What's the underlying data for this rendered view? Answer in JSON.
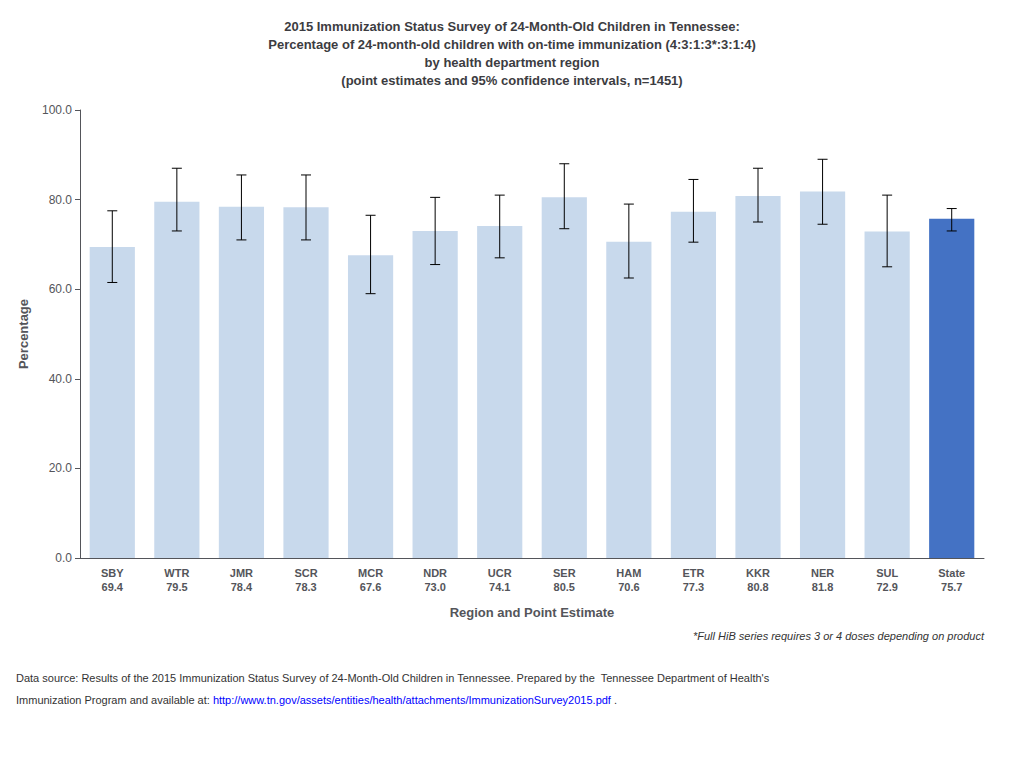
{
  "chart_data": {
    "type": "bar",
    "title": "2015 Immunization Status Survey of 24-Month-Old Children in Tennessee:\nPercentage of 24-month-old children with on-time immunization (4:3:1:3*:3:1:4)\nby health department region\n(point estimates and 95% confidence intervals, n=1451)",
    "xlabel": "Region and Point Estimate",
    "ylabel": "Percentage",
    "categories": [
      "SBY\n69.4",
      "WTR\n79.5",
      "JMR\n78.4",
      "SCR\n78.3",
      "MCR\n67.6",
      "NDR\n73.0",
      "UCR\n74.1",
      "SER\n80.5",
      "HAM\n70.6",
      "ETR\n77.3",
      "KKR\n80.8",
      "NER\n81.8",
      "SUL\n72.9",
      "State\n75.7"
    ],
    "values": [
      69.4,
      79.5,
      78.4,
      78.3,
      67.6,
      73.0,
      74.1,
      80.5,
      70.6,
      77.3,
      80.8,
      81.8,
      72.9,
      75.7
    ],
    "ci_lower": [
      61.5,
      73.0,
      71.0,
      71.0,
      59.0,
      65.5,
      67.0,
      73.5,
      62.5,
      70.5,
      75.0,
      74.5,
      65.0,
      73.0
    ],
    "ci_upper": [
      77.5,
      87.0,
      85.5,
      85.5,
      76.5,
      80.5,
      81.0,
      88.0,
      79.0,
      84.5,
      87.0,
      89.0,
      81.0,
      78.0
    ],
    "colors": [
      "#c8d9ec",
      "#c8d9ec",
      "#c8d9ec",
      "#c8d9ec",
      "#c8d9ec",
      "#c8d9ec",
      "#c8d9ec",
      "#c8d9ec",
      "#c8d9ec",
      "#c8d9ec",
      "#c8d9ec",
      "#c8d9ec",
      "#c8d9ec",
      "#4472c4"
    ],
    "ylim": [
      0.0,
      100.0
    ],
    "yticks": [
      {
        "value": 0,
        "label": "0.0"
      },
      {
        "value": 20,
        "label": "20.0"
      },
      {
        "value": 40,
        "label": "40.0"
      },
      {
        "value": 60,
        "label": "60.0"
      },
      {
        "value": 80,
        "label": "80.0"
      },
      {
        "value": 100,
        "label": "100.0"
      }
    ],
    "grid": false,
    "footnote": "*Full HiB series requires 3 or 4 doses depending on product",
    "source": [
      "Data source: Results of the 2015 Immunization Status Survey of 24-Month-Old Children in Tennessee. Prepared by the  Tennessee Department of Health's",
      "Immunization Program and available at: ",
      "http://www.tn.gov/assets/entities/health/attachments/ImmunizationSurvey2015.pdf",
      " ."
    ]
  }
}
